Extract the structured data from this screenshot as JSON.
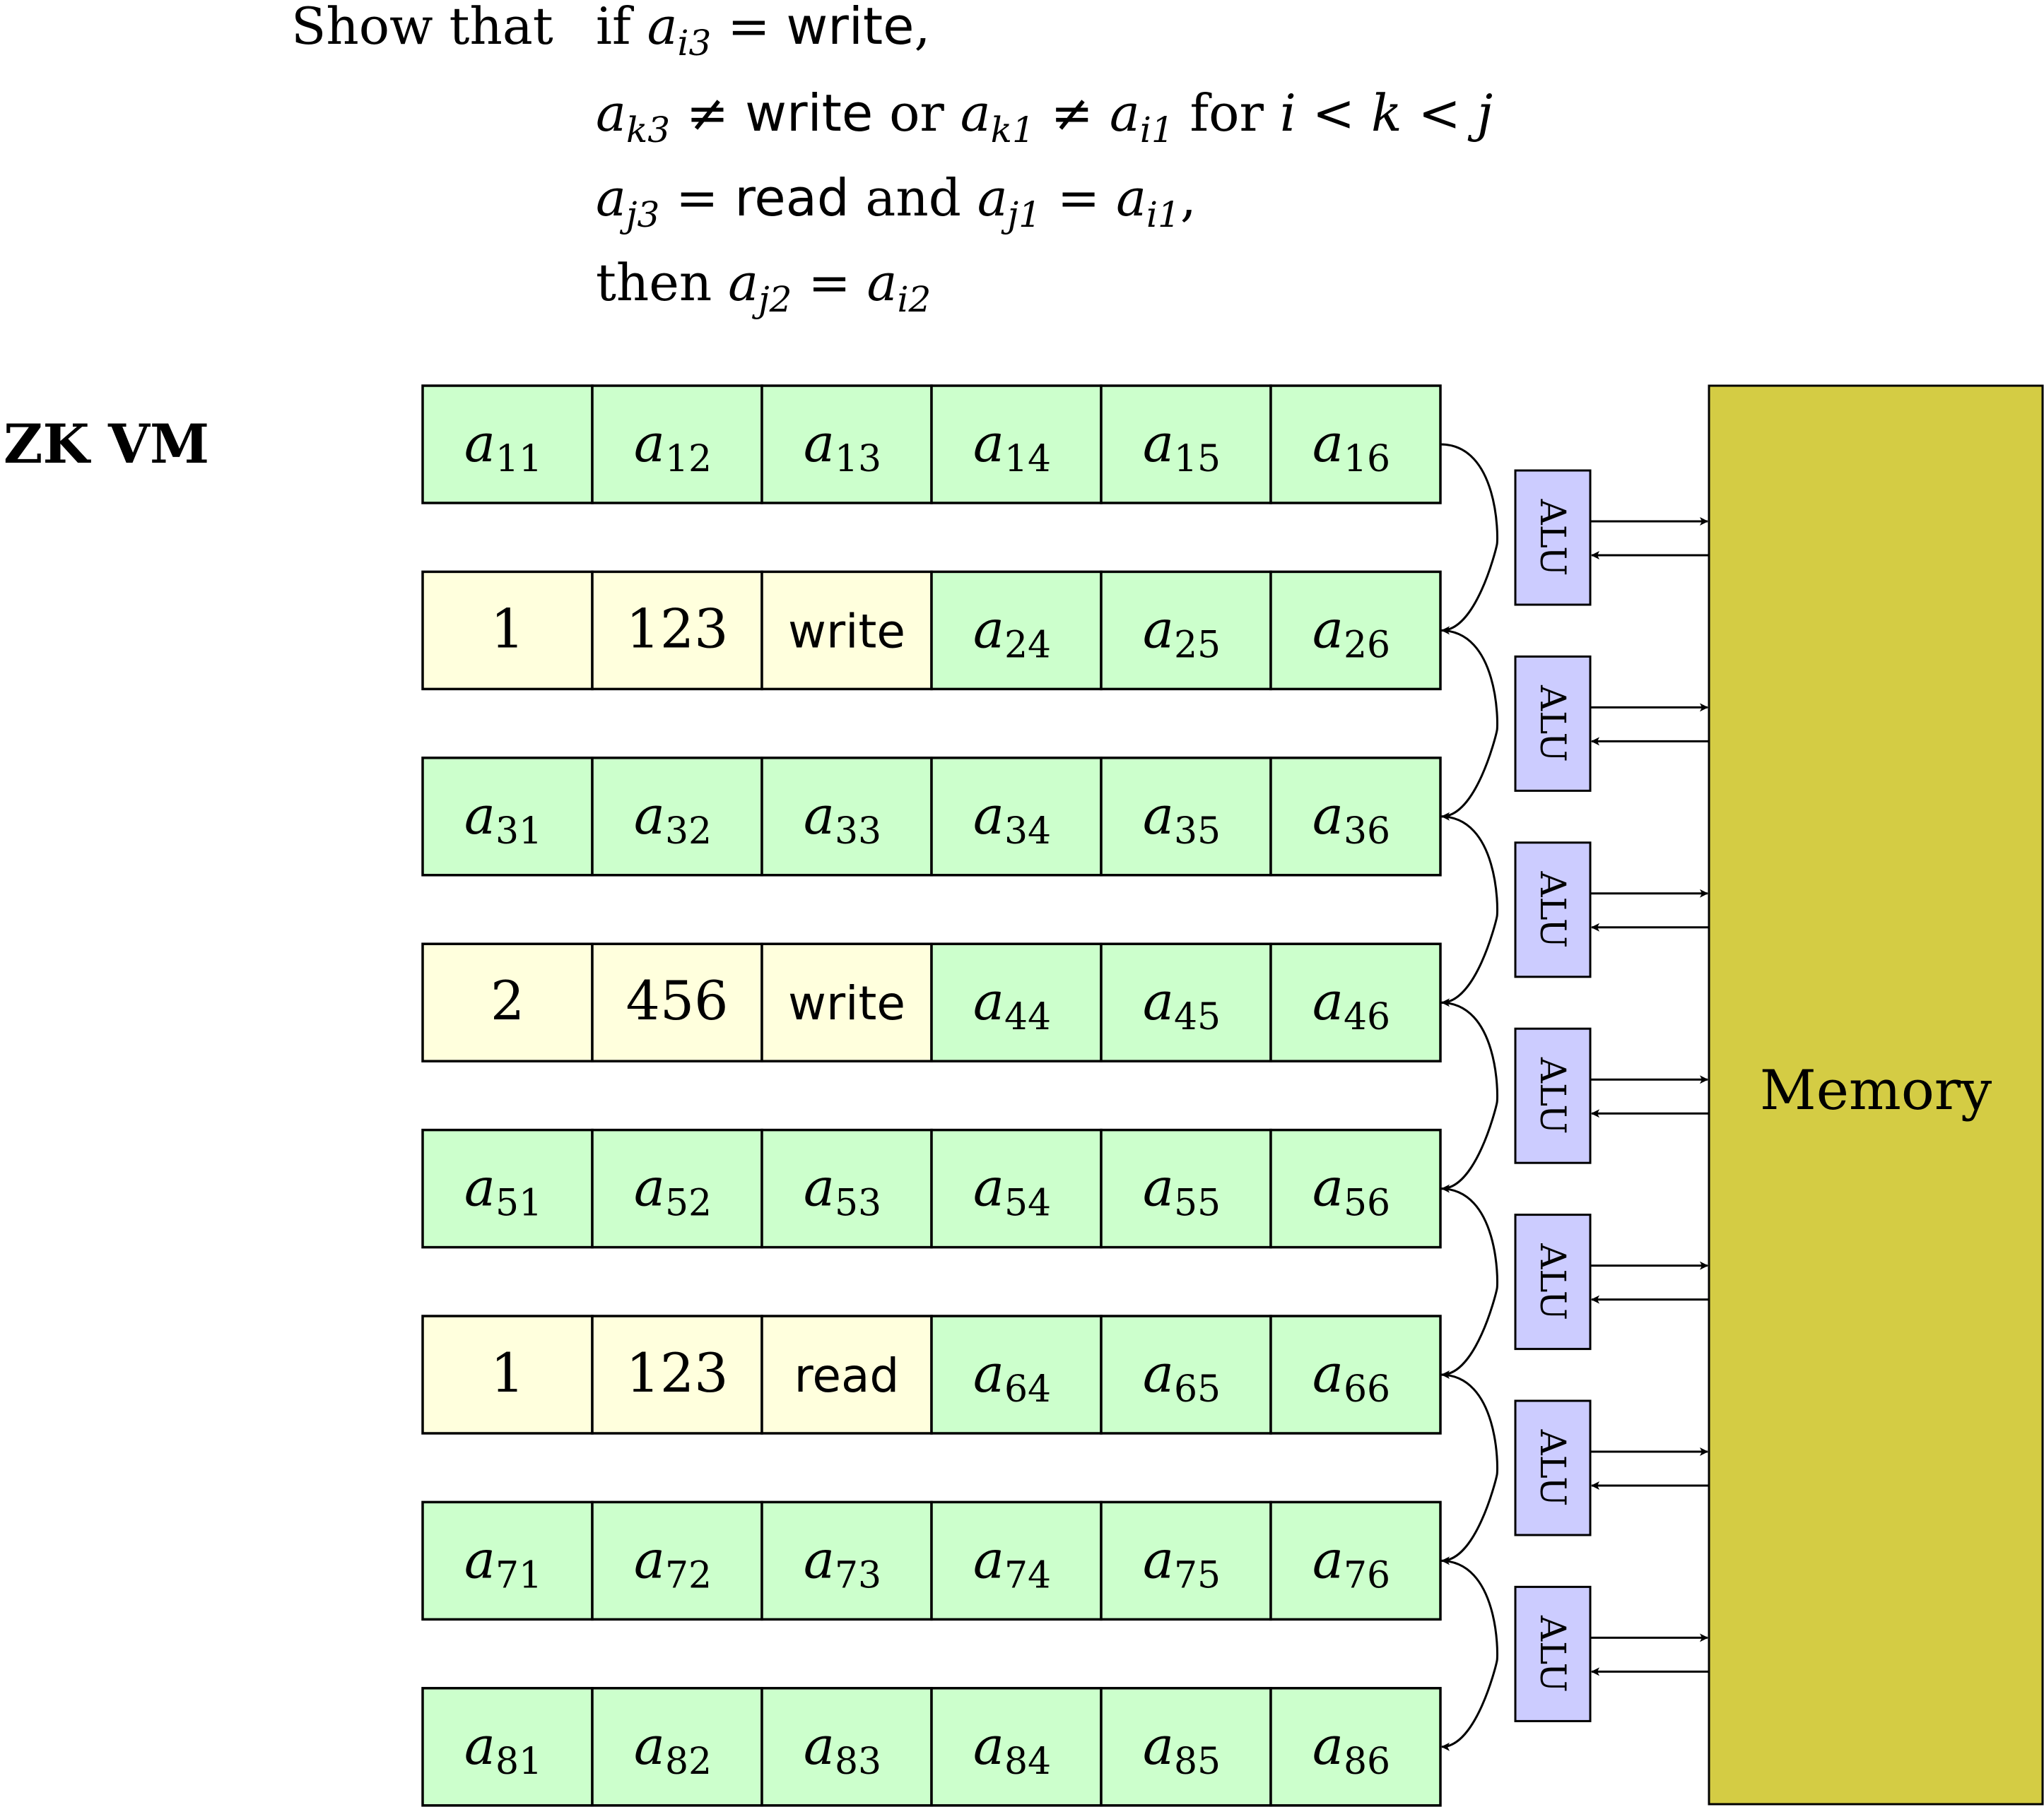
{
  "header": {
    "prefix": "Show that",
    "lines": [
      {
        "id": "cond1",
        "parts": [
          {
            "t": "if ",
            "s": "roman"
          },
          {
            "t": "a",
            "s": "math",
            "sub": "i3"
          },
          {
            "t": " = ",
            "s": "roman"
          },
          {
            "t": "write",
            "s": "sans"
          },
          {
            "t": ",",
            "s": "roman"
          }
        ]
      },
      {
        "id": "cond2",
        "parts": [
          {
            "t": "a",
            "s": "math",
            "sub": "k3"
          },
          {
            "t": " ≠ ",
            "s": "roman"
          },
          {
            "t": "write",
            "s": "sans"
          },
          {
            "t": " or ",
            "s": "roman"
          },
          {
            "t": "a",
            "s": "math",
            "sub": "k1"
          },
          {
            "t": " ≠ ",
            "s": "roman"
          },
          {
            "t": "a",
            "s": "math",
            "sub": "i1"
          },
          {
            "t": " for ",
            "s": "roman"
          },
          {
            "t": "i",
            "s": "math"
          },
          {
            "t": " < ",
            "s": "roman"
          },
          {
            "t": "k",
            "s": "math"
          },
          {
            "t": " < ",
            "s": "roman"
          },
          {
            "t": "j",
            "s": "math"
          }
        ]
      },
      {
        "id": "cond3",
        "parts": [
          {
            "t": "a",
            "s": "math",
            "sub": "j3"
          },
          {
            "t": " = ",
            "s": "roman"
          },
          {
            "t": "read",
            "s": "sans"
          },
          {
            "t": " and ",
            "s": "roman"
          },
          {
            "t": "a",
            "s": "math",
            "sub": "j1"
          },
          {
            "t": " = ",
            "s": "roman"
          },
          {
            "t": "a",
            "s": "math",
            "sub": "i1"
          },
          {
            "t": ",",
            "s": "roman"
          }
        ]
      },
      {
        "id": "conclusion",
        "parts": [
          {
            "t": "then ",
            "s": "roman"
          },
          {
            "t": "a",
            "s": "math",
            "sub": "j2"
          },
          {
            "t": " = ",
            "s": "roman"
          },
          {
            "t": "a",
            "s": "math",
            "sub": "i2"
          }
        ]
      }
    ]
  },
  "vm_label": "ZK VM",
  "memory_label": "Memory",
  "alu_label": "ALU",
  "alu_count": 7,
  "colors": {
    "cell_default": "#ccffcc",
    "cell_highlight": "#ffffdd",
    "alu_fill": "#ccccff",
    "memory_fill": "#d4cc44",
    "stroke": "#000000"
  },
  "rows": [
    {
      "index": 1,
      "cells": [
        {
          "base": "a",
          "sub": "11"
        },
        {
          "base": "a",
          "sub": "12"
        },
        {
          "base": "a",
          "sub": "13"
        },
        {
          "base": "a",
          "sub": "14"
        },
        {
          "base": "a",
          "sub": "15"
        },
        {
          "base": "a",
          "sub": "16"
        }
      ]
    },
    {
      "index": 2,
      "cells": [
        {
          "text": "1",
          "style": "roman",
          "highlight": true
        },
        {
          "text": "123",
          "style": "roman",
          "highlight": true
        },
        {
          "text": "write",
          "style": "sans",
          "highlight": true
        },
        {
          "base": "a",
          "sub": "24"
        },
        {
          "base": "a",
          "sub": "25"
        },
        {
          "base": "a",
          "sub": "26"
        }
      ]
    },
    {
      "index": 3,
      "cells": [
        {
          "base": "a",
          "sub": "31"
        },
        {
          "base": "a",
          "sub": "32"
        },
        {
          "base": "a",
          "sub": "33"
        },
        {
          "base": "a",
          "sub": "34"
        },
        {
          "base": "a",
          "sub": "35"
        },
        {
          "base": "a",
          "sub": "36"
        }
      ]
    },
    {
      "index": 4,
      "cells": [
        {
          "text": "2",
          "style": "roman",
          "highlight": true
        },
        {
          "text": "456",
          "style": "roman",
          "highlight": true
        },
        {
          "text": "write",
          "style": "sans",
          "highlight": true
        },
        {
          "base": "a",
          "sub": "44"
        },
        {
          "base": "a",
          "sub": "45"
        },
        {
          "base": "a",
          "sub": "46"
        }
      ]
    },
    {
      "index": 5,
      "cells": [
        {
          "base": "a",
          "sub": "51"
        },
        {
          "base": "a",
          "sub": "52"
        },
        {
          "base": "a",
          "sub": "53"
        },
        {
          "base": "a",
          "sub": "54"
        },
        {
          "base": "a",
          "sub": "55"
        },
        {
          "base": "a",
          "sub": "56"
        }
      ]
    },
    {
      "index": 6,
      "cells": [
        {
          "text": "1",
          "style": "roman",
          "highlight": true
        },
        {
          "text": "123",
          "style": "roman",
          "highlight": true
        },
        {
          "text": "read",
          "style": "sans",
          "highlight": true
        },
        {
          "base": "a",
          "sub": "64"
        },
        {
          "base": "a",
          "sub": "65"
        },
        {
          "base": "a",
          "sub": "66"
        }
      ]
    },
    {
      "index": 7,
      "cells": [
        {
          "base": "a",
          "sub": "71"
        },
        {
          "base": "a",
          "sub": "72"
        },
        {
          "base": "a",
          "sub": "73"
        },
        {
          "base": "a",
          "sub": "74"
        },
        {
          "base": "a",
          "sub": "75"
        },
        {
          "base": "a",
          "sub": "76"
        }
      ]
    },
    {
      "index": 8,
      "cells": [
        {
          "base": "a",
          "sub": "81"
        },
        {
          "base": "a",
          "sub": "82"
        },
        {
          "base": "a",
          "sub": "83"
        },
        {
          "base": "a",
          "sub": "84"
        },
        {
          "base": "a",
          "sub": "85"
        },
        {
          "base": "a",
          "sub": "86"
        }
      ]
    }
  ]
}
